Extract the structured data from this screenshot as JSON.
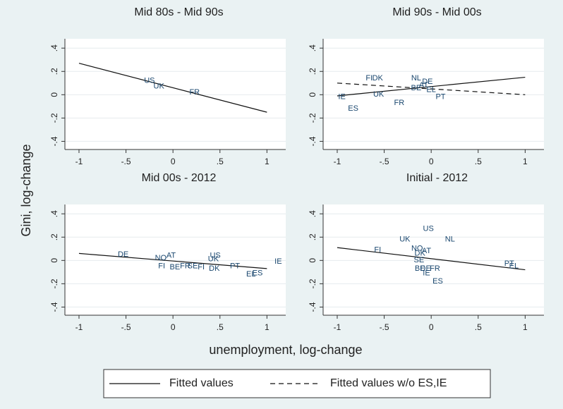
{
  "y_label": "Gini, log-change",
  "x_label": "unemployment, log-change",
  "legend": [
    {
      "name": "Fitted values",
      "dash": "solid"
    },
    {
      "name": "Fitted values w/o ES,IE",
      "dash": "dashed"
    }
  ],
  "chart_data": [
    {
      "type": "scatter",
      "title": "Mid 80s - Mid 90s",
      "points": {
        "labels": [
          "US",
          "UK",
          "FR"
        ],
        "x": [
          -0.25,
          -0.15,
          0.23
        ],
        "values": [
          0.12,
          0.07,
          0.02
        ]
      },
      "fits": [
        {
          "dash": "solid",
          "x": [
            -1,
            1
          ],
          "values": [
            0.27,
            -0.15
          ]
        }
      ],
      "xlim": [
        -1.15,
        1.2
      ],
      "ylim": [
        -0.47,
        0.48
      ],
      "xticks": [
        -1,
        {
          "value": -0.5,
          "label": "-.5"
        },
        0,
        {
          "value": 0.5,
          "label": ".5"
        },
        1
      ],
      "yticks": [
        {
          "value": -0.4,
          "label": "-.4"
        },
        {
          "value": -0.2,
          "label": "-.2"
        },
        0,
        {
          "value": 0.2,
          "label": ".2"
        },
        {
          "value": 0.4,
          "label": ".4"
        }
      ],
      "grid": true
    },
    {
      "type": "scatter",
      "title": "Mid 90s - Mid 00s",
      "points": {
        "labels": [
          "FI",
          "DK",
          "NL",
          "DE",
          "AT",
          "BE",
          "EL",
          "IE",
          "UK",
          "FR",
          "ES",
          "PT"
        ],
        "x": [
          -0.66,
          -0.57,
          -0.16,
          -0.04,
          -0.08,
          -0.16,
          0.0,
          -0.95,
          -0.56,
          -0.34,
          -0.83,
          0.1
        ],
        "values": [
          0.14,
          0.14,
          0.14,
          0.11,
          0.08,
          0.055,
          0.04,
          -0.02,
          0.0,
          -0.07,
          -0.12,
          -0.02
        ]
      },
      "fits": [
        {
          "dash": "solid",
          "x": [
            -1,
            1
          ],
          "values": [
            -0.01,
            0.15
          ]
        },
        {
          "dash": "dashed",
          "x": [
            -1,
            1
          ],
          "values": [
            0.1,
            0.0
          ]
        }
      ],
      "xlim": [
        -1.15,
        1.2
      ],
      "ylim": [
        -0.47,
        0.48
      ],
      "xticks": [
        -1,
        {
          "value": -0.5,
          "label": "-.5"
        },
        0,
        {
          "value": 0.5,
          "label": ".5"
        },
        1
      ],
      "yticks": [
        {
          "value": -0.4,
          "label": "-.4"
        },
        {
          "value": -0.2,
          "label": "-.2"
        },
        0,
        {
          "value": 0.2,
          "label": ".2"
        },
        {
          "value": 0.4,
          "label": ".4"
        }
      ],
      "grid": true
    },
    {
      "type": "scatter",
      "title": "Mid 00s - 2012",
      "points": {
        "labels": [
          "DE",
          "NO",
          "AT",
          "FI",
          "BE",
          "FR",
          "SE",
          "FI",
          "DK",
          "UK",
          "US",
          "PT",
          "EL",
          "ES",
          "IE"
        ],
        "x": [
          -0.53,
          -0.13,
          -0.02,
          -0.12,
          0.02,
          0.13,
          0.21,
          0.3,
          0.44,
          0.43,
          0.45,
          0.66,
          0.83,
          0.9,
          1.12
        ],
        "values": [
          0.05,
          0.02,
          0.04,
          -0.05,
          -0.06,
          -0.05,
          -0.05,
          -0.06,
          -0.07,
          0.01,
          0.04,
          -0.05,
          -0.12,
          -0.11,
          -0.01
        ]
      },
      "fits": [
        {
          "dash": "solid",
          "x": [
            -1,
            1
          ],
          "values": [
            0.06,
            -0.07
          ]
        }
      ],
      "xlim": [
        -1.15,
        1.2
      ],
      "ylim": [
        -0.47,
        0.48
      ],
      "xticks": [
        -1,
        {
          "value": -0.5,
          "label": "-.5"
        },
        0,
        {
          "value": 0.5,
          "label": ".5"
        },
        1
      ],
      "yticks": [
        {
          "value": -0.4,
          "label": "-.4"
        },
        {
          "value": -0.2,
          "label": "-.2"
        },
        0,
        {
          "value": 0.2,
          "label": ".2"
        },
        {
          "value": 0.4,
          "label": ".4"
        }
      ],
      "grid": true
    },
    {
      "type": "scatter",
      "title": "Initial - 2012",
      "points": {
        "labels": [
          "US",
          "NL",
          "UK",
          "FI",
          "NO",
          "AT",
          "DK",
          "SE",
          "BE",
          "DE",
          "FR",
          "IE",
          "ES",
          "PT",
          "EL"
        ],
        "x": [
          -0.03,
          0.2,
          -0.28,
          -0.57,
          -0.15,
          -0.05,
          -0.12,
          -0.13,
          -0.12,
          -0.06,
          0.04,
          -0.05,
          0.07,
          0.83,
          0.88
        ],
        "values": [
          0.27,
          0.18,
          0.18,
          0.09,
          0.1,
          0.08,
          0.06,
          0.0,
          -0.07,
          -0.07,
          -0.07,
          -0.11,
          -0.18,
          -0.03,
          -0.05
        ]
      },
      "fits": [
        {
          "dash": "solid",
          "x": [
            -1,
            1
          ],
          "values": [
            0.11,
            -0.08
          ]
        }
      ],
      "xlim": [
        -1.15,
        1.2
      ],
      "ylim": [
        -0.47,
        0.48
      ],
      "xticks": [
        -1,
        {
          "value": -0.5,
          "label": "-.5"
        },
        0,
        {
          "value": 0.5,
          "label": ".5"
        },
        1
      ],
      "yticks": [
        {
          "value": -0.4,
          "label": "-.4"
        },
        {
          "value": -0.2,
          "label": "-.2"
        },
        0,
        {
          "value": 0.2,
          "label": ".2"
        },
        {
          "value": 0.4,
          "label": ".4"
        }
      ],
      "grid": true
    }
  ]
}
